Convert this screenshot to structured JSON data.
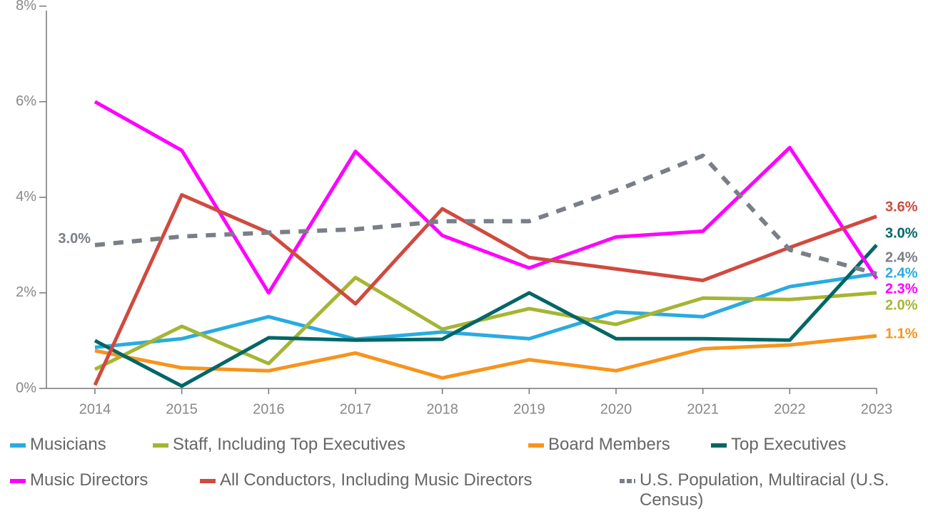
{
  "chart_data": {
    "type": "line",
    "categories": [
      "2014",
      "2015",
      "2016",
      "2017",
      "2018",
      "2019",
      "2020",
      "2021",
      "2022",
      "2023"
    ],
    "ylim": [
      0,
      8
    ],
    "yticks": [
      {
        "value": 0,
        "label": "0%"
      },
      {
        "value": 2,
        "label": "2%"
      },
      {
        "value": 4,
        "label": "4%"
      },
      {
        "value": 6,
        "label": "6%"
      },
      {
        "value": 8,
        "label": "8%"
      }
    ],
    "grid": false,
    "legend": "bottom",
    "series": [
      {
        "name": "Musicians",
        "color": "#29abe2",
        "values": [
          0.86,
          1.04,
          1.5,
          1.03,
          1.18,
          1.04,
          1.6,
          1.5,
          2.13,
          2.4
        ],
        "value_labels": [
          null,
          null,
          null,
          null,
          null,
          null,
          null,
          null,
          null,
          "2.4%"
        ]
      },
      {
        "name": "Staff, Including Top Executives",
        "color": "#a5b533",
        "values": [
          0.4,
          1.3,
          0.52,
          2.32,
          1.24,
          1.67,
          1.34,
          1.89,
          1.86,
          2.0
        ],
        "value_labels": [
          null,
          null,
          null,
          null,
          null,
          null,
          null,
          null,
          null,
          "2.0%"
        ]
      },
      {
        "name": "Board Members",
        "color": "#f7941d",
        "values": [
          0.79,
          0.43,
          0.37,
          0.74,
          0.22,
          0.6,
          0.37,
          0.83,
          0.91,
          1.1
        ],
        "value_labels": [
          null,
          null,
          null,
          null,
          null,
          null,
          null,
          null,
          null,
          "1.1%"
        ]
      },
      {
        "name": "Top Executives",
        "color": "#006666",
        "values": [
          1.0,
          0.05,
          1.06,
          1.01,
          1.03,
          2.0,
          1.04,
          1.04,
          1.01,
          3.0
        ],
        "value_labels": [
          null,
          null,
          null,
          null,
          null,
          null,
          null,
          null,
          null,
          "3.0%"
        ]
      },
      {
        "name": "Music Directors",
        "color": "#ff00ff",
        "values": [
          6.0,
          4.98,
          2.0,
          4.96,
          3.2,
          2.52,
          3.17,
          3.29,
          5.04,
          2.3
        ],
        "value_labels": [
          null,
          null,
          null,
          null,
          null,
          null,
          null,
          null,
          null,
          "2.3%"
        ]
      },
      {
        "name": "All Conductors, Including Music Directors",
        "color": "#d04a3f",
        "values": [
          0.07,
          4.05,
          3.26,
          1.77,
          3.76,
          2.74,
          2.5,
          2.26,
          2.95,
          3.6
        ],
        "value_labels": [
          null,
          null,
          null,
          null,
          null,
          null,
          null,
          null,
          null,
          "3.6%"
        ]
      },
      {
        "name": "U.S. Population, Multiracial (U.S. Census)",
        "color": "#7a7f87",
        "dashed": true,
        "values": [
          3.0,
          3.18,
          3.26,
          3.33,
          3.5,
          3.5,
          4.14,
          4.87,
          2.9,
          2.4
        ],
        "value_labels": [
          "3.0%",
          null,
          null,
          null,
          null,
          null,
          null,
          null,
          null,
          "2.4%"
        ]
      }
    ]
  }
}
